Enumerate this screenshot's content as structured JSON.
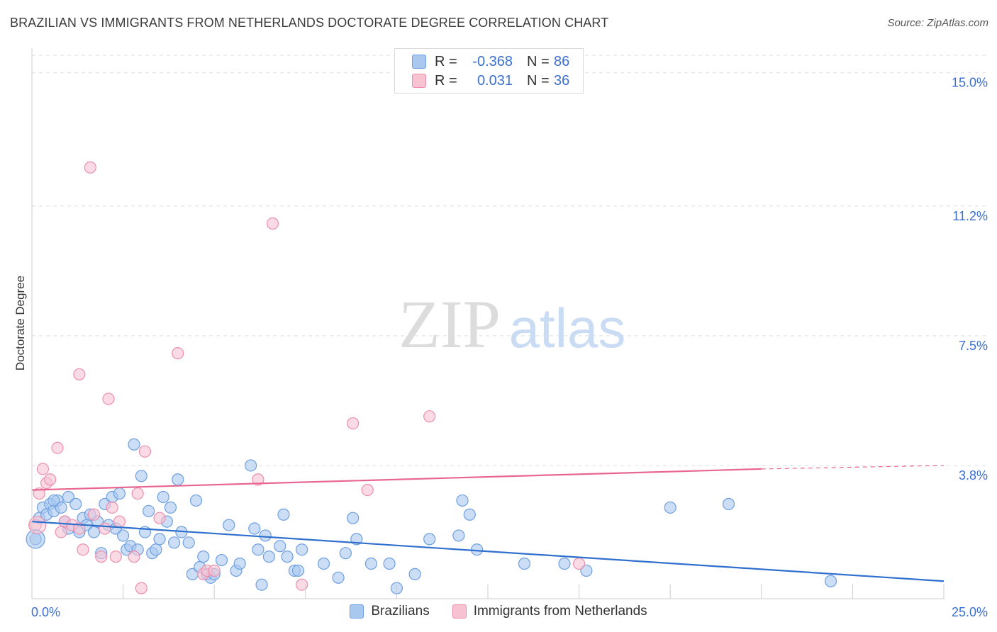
{
  "header": {
    "title": "BRAZILIAN VS IMMIGRANTS FROM NETHERLANDS DOCTORATE DEGREE CORRELATION CHART",
    "source": "Source: ZipAtlas.com"
  },
  "watermark": {
    "zip": "ZIP",
    "atlas": "atlas"
  },
  "legend": {
    "rows": [
      {
        "r_label": "R =",
        "r_value": "-0.368",
        "n_label": "N =",
        "n_value": "86",
        "color": "#a9c8f0",
        "border": "#6e9fe0"
      },
      {
        "r_label": "R =",
        "r_value": "0.031",
        "n_label": "N =",
        "n_value": "36",
        "color": "#f7c3d3",
        "border": "#ec8fac"
      }
    ]
  },
  "bottom_legend": [
    {
      "label": "Brazilians",
      "color": "#a9c8f0",
      "border": "#6e9fe0"
    },
    {
      "label": "Immigrants from Netherlands",
      "color": "#f7c3d3",
      "border": "#ec8fac"
    }
  ],
  "chart_data": {
    "type": "scatter",
    "title": "BRAZILIAN VS IMMIGRANTS FROM NETHERLANDS DOCTORATE DEGREE CORRELATION CHART",
    "xlabel": "",
    "ylabel": "Doctorate Degree",
    "xlim": [
      0,
      25
    ],
    "ylim": [
      0,
      15.5
    ],
    "x_tick_labels": [
      "0.0%",
      "25.0%"
    ],
    "y_ticks": [
      3.8,
      7.5,
      11.2,
      15.0
    ],
    "y_tick_labels": [
      "3.8%",
      "7.5%",
      "11.2%",
      "15.0%"
    ],
    "grid": true,
    "legend_position": "top-center",
    "series": [
      {
        "name": "Brazilians",
        "color": "#6e9fe0",
        "fill": "#a9c8f0",
        "trend": {
          "x": [
            0,
            25
          ],
          "y": [
            2.2,
            0.5
          ],
          "color": "#2f6fce"
        },
        "points": [
          [
            0.1,
            1.7
          ],
          [
            0.2,
            2.3
          ],
          [
            0.3,
            2.6
          ],
          [
            0.4,
            2.4
          ],
          [
            0.5,
            2.7
          ],
          [
            0.6,
            2.5
          ],
          [
            0.7,
            2.8
          ],
          [
            0.8,
            2.6
          ],
          [
            0.9,
            2.2
          ],
          [
            1.0,
            2.9
          ],
          [
            1.0,
            2.0
          ],
          [
            1.2,
            2.7
          ],
          [
            1.3,
            1.9
          ],
          [
            1.4,
            2.3
          ],
          [
            1.5,
            2.1
          ],
          [
            1.6,
            2.4
          ],
          [
            1.7,
            1.9
          ],
          [
            1.8,
            2.2
          ],
          [
            1.9,
            1.3
          ],
          [
            2.0,
            2.7
          ],
          [
            2.1,
            2.1
          ],
          [
            2.2,
            2.9
          ],
          [
            2.3,
            2.0
          ],
          [
            2.4,
            3.0
          ],
          [
            2.5,
            1.8
          ],
          [
            2.6,
            1.4
          ],
          [
            2.7,
            1.5
          ],
          [
            2.8,
            4.4
          ],
          [
            2.9,
            1.4
          ],
          [
            3.0,
            3.5
          ],
          [
            3.1,
            1.9
          ],
          [
            3.2,
            2.5
          ],
          [
            3.3,
            1.3
          ],
          [
            3.4,
            1.4
          ],
          [
            3.5,
            1.7
          ],
          [
            3.6,
            2.9
          ],
          [
            3.7,
            2.2
          ],
          [
            3.8,
            2.6
          ],
          [
            3.9,
            1.6
          ],
          [
            4.0,
            3.4
          ],
          [
            4.1,
            1.9
          ],
          [
            4.3,
            1.6
          ],
          [
            4.4,
            0.7
          ],
          [
            4.5,
            2.8
          ],
          [
            4.6,
            0.9
          ],
          [
            4.7,
            1.2
          ],
          [
            4.8,
            0.7
          ],
          [
            4.9,
            0.6
          ],
          [
            5.0,
            0.7
          ],
          [
            5.2,
            1.1
          ],
          [
            5.4,
            2.1
          ],
          [
            5.6,
            0.8
          ],
          [
            5.7,
            1.0
          ],
          [
            6.0,
            3.8
          ],
          [
            6.1,
            2.0
          ],
          [
            6.2,
            1.4
          ],
          [
            6.3,
            0.4
          ],
          [
            6.4,
            1.8
          ],
          [
            6.5,
            1.2
          ],
          [
            6.8,
            1.5
          ],
          [
            6.9,
            2.4
          ],
          [
            7.0,
            1.2
          ],
          [
            7.2,
            0.8
          ],
          [
            7.3,
            0.8
          ],
          [
            7.4,
            1.4
          ],
          [
            8.0,
            1.0
          ],
          [
            8.4,
            0.6
          ],
          [
            8.6,
            1.3
          ],
          [
            8.8,
            2.3
          ],
          [
            8.9,
            1.7
          ],
          [
            9.3,
            1.0
          ],
          [
            9.8,
            1.0
          ],
          [
            10.0,
            0.3
          ],
          [
            10.5,
            0.7
          ],
          [
            10.9,
            1.7
          ],
          [
            11.7,
            1.8
          ],
          [
            11.8,
            2.8
          ],
          [
            12.0,
            2.4
          ],
          [
            12.2,
            1.4
          ],
          [
            13.5,
            1.0
          ],
          [
            14.6,
            1.0
          ],
          [
            15.2,
            0.8
          ],
          [
            17.5,
            2.6
          ],
          [
            19.1,
            2.7
          ],
          [
            21.9,
            0.5
          ],
          [
            0.6,
            2.8
          ]
        ],
        "radius": 8
      },
      {
        "name": "Immigrants from Netherlands",
        "color": "#ec8fac",
        "fill": "#f7c3d3",
        "trend": {
          "x": [
            0,
            20
          ],
          "y": [
            3.1,
            3.7
          ],
          "dashed_to": [
            25,
            3.8
          ],
          "color": "#e8668f"
        },
        "points": [
          [
            0.1,
            2.1
          ],
          [
            0.2,
            3.0
          ],
          [
            0.3,
            3.7
          ],
          [
            0.4,
            3.3
          ],
          [
            0.5,
            3.4
          ],
          [
            0.7,
            4.3
          ],
          [
            0.8,
            1.9
          ],
          [
            0.9,
            2.2
          ],
          [
            1.1,
            2.1
          ],
          [
            1.3,
            2.0
          ],
          [
            1.3,
            6.4
          ],
          [
            1.4,
            1.4
          ],
          [
            1.6,
            12.3
          ],
          [
            1.7,
            2.4
          ],
          [
            1.9,
            1.2
          ],
          [
            2.0,
            2.0
          ],
          [
            2.1,
            5.7
          ],
          [
            2.2,
            2.6
          ],
          [
            2.3,
            1.2
          ],
          [
            2.4,
            2.2
          ],
          [
            2.8,
            1.2
          ],
          [
            2.9,
            3.0
          ],
          [
            3.0,
            0.3
          ],
          [
            3.1,
            4.2
          ],
          [
            3.5,
            2.3
          ],
          [
            4.0,
            7.0
          ],
          [
            4.7,
            0.7
          ],
          [
            4.8,
            0.8
          ],
          [
            5.0,
            0.8
          ],
          [
            6.2,
            3.4
          ],
          [
            6.6,
            10.7
          ],
          [
            7.4,
            0.4
          ],
          [
            8.8,
            5.0
          ],
          [
            9.2,
            3.1
          ],
          [
            10.9,
            5.2
          ],
          [
            15.0,
            1.0
          ]
        ],
        "radius": 8
      }
    ]
  }
}
